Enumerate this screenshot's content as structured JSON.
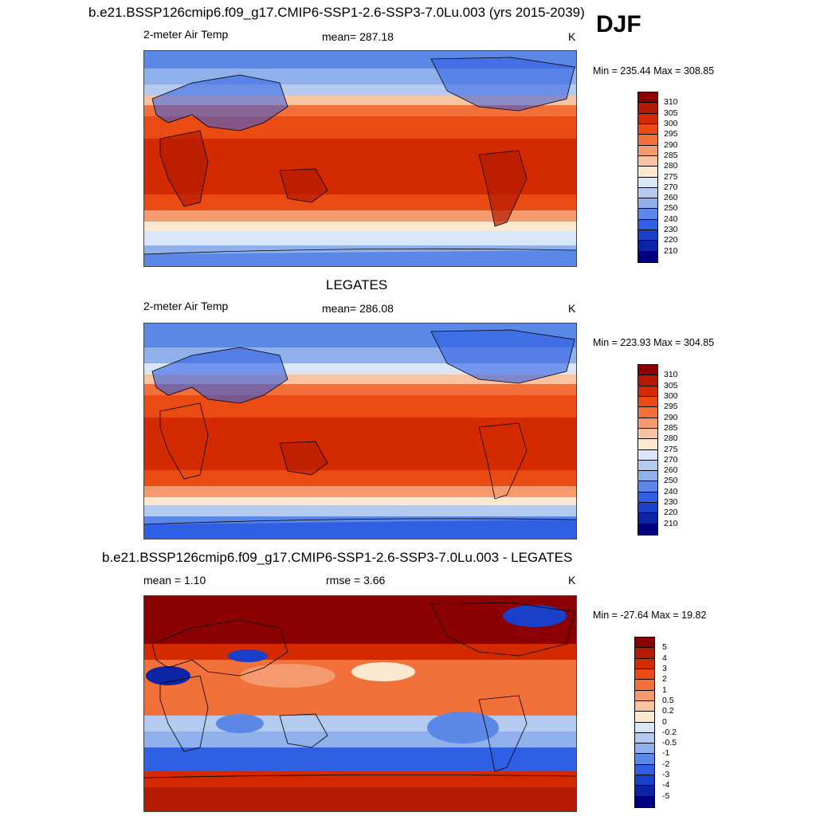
{
  "season": "DJF",
  "panels": [
    {
      "title": "b.e21.BSSP126cmip6.f09_g17.CMIP6-SSP1-2.6-SSP3-7.0Lu.003 (yrs 2015-2039)",
      "left_label": "2-meter Air Temp",
      "center_label": "mean= 287.18",
      "right_label": "K",
      "minmax": "Min = 235.44 Max = 308.85",
      "kind": "abs"
    },
    {
      "title": "LEGATES",
      "left_label": "2-meter Air Temp",
      "center_label": "mean= 286.08",
      "right_label": "K",
      "minmax": "Min = 223.93 Max = 304.85",
      "kind": "abs"
    },
    {
      "title": "b.e21.BSSP126cmip6.f09_g17.CMIP6-SSP1-2.6-SSP3-7.0Lu.003 - LEGATES",
      "left_label": "mean =   1.10",
      "center_label": "rmse =   3.66",
      "right_label": "K",
      "minmax": "Min = -27.64 Max =  19.82",
      "kind": "diff"
    }
  ],
  "colorbars": {
    "abs": {
      "labels": [
        "310",
        "305",
        "300",
        "295",
        "290",
        "285",
        "280",
        "275",
        "270",
        "260",
        "250",
        "240",
        "230",
        "220",
        "210"
      ],
      "colors": [
        "#8b0000",
        "#b31a00",
        "#d42a00",
        "#ea4b12",
        "#f2703a",
        "#f59a6e",
        "#f7c3a0",
        "#fde8d0",
        "#d9e6f7",
        "#b4cbef",
        "#8fb0ea",
        "#5b87e6",
        "#2f5fe3",
        "#1a3fc9",
        "#0a24a3",
        "#000080"
      ]
    },
    "diff": {
      "labels": [
        "5",
        "4",
        "3",
        "2",
        "1",
        "0.5",
        "0.2",
        "0",
        "-0.2",
        "-0.5",
        "-1",
        "-2",
        "-3",
        "-4",
        "-5"
      ],
      "colors": [
        "#8b0000",
        "#b31a00",
        "#d42a00",
        "#ea4b12",
        "#f2703a",
        "#f59a6e",
        "#f7c3a0",
        "#fde8d0",
        "#d9e6f7",
        "#b4cbef",
        "#8fb0ea",
        "#5b87e6",
        "#2f5fe3",
        "#1a3fc9",
        "#0a24a3",
        "#000080"
      ]
    }
  }
}
